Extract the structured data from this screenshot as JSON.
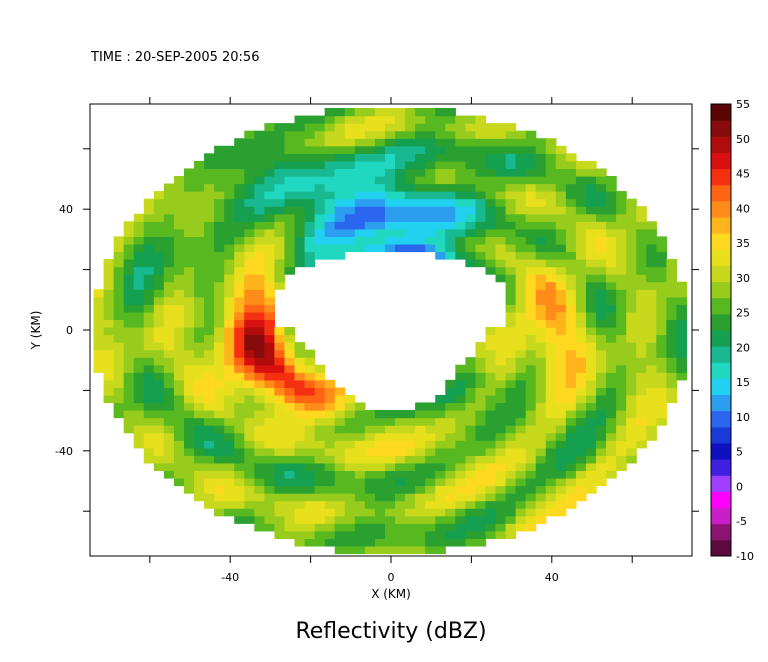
{
  "chart_data": {
    "type": "heatmap",
    "time_label": "TIME : 20-SEP-2005 20:56",
    "title": "Reflectivity (dBZ)",
    "xlabel": "X (KM)",
    "ylabel": "Y (KM)",
    "xlim": [
      -75,
      75
    ],
    "ylim": [
      -75,
      75
    ],
    "x_ticks": [
      -40,
      0,
      40
    ],
    "y_ticks": [
      40,
      0,
      -40
    ],
    "colorbar": {
      "min": -10,
      "max": 55,
      "ticks": [
        55,
        50,
        45,
        40,
        35,
        30,
        25,
        20,
        15,
        10,
        5,
        0,
        -5,
        -10
      ],
      "colors": [
        "#5a0a3c",
        "#8a1470",
        "#c81ec8",
        "#ff00ff",
        "#a040ff",
        "#4020e0",
        "#1010c0",
        "#1a3ad8",
        "#2a66ee",
        "#2c9ef0",
        "#22d0f0",
        "#20d8c0",
        "#18b890",
        "#14a050",
        "#2aa030",
        "#58b820",
        "#98cc1c",
        "#c8d81c",
        "#e8e01c",
        "#ffd820",
        "#ffb41c",
        "#ff8c18",
        "#ff6414",
        "#f43010",
        "#d81010",
        "#b00c0c",
        "#860c0c",
        "#5a0606"
      ]
    },
    "features": {
      "outer_radius_km": 74,
      "eye_radius_km": 24,
      "peak_dBZ": 50,
      "strong_band": "southern eyewall, west to southeast",
      "weak_region": "north and northwest of eye"
    }
  }
}
